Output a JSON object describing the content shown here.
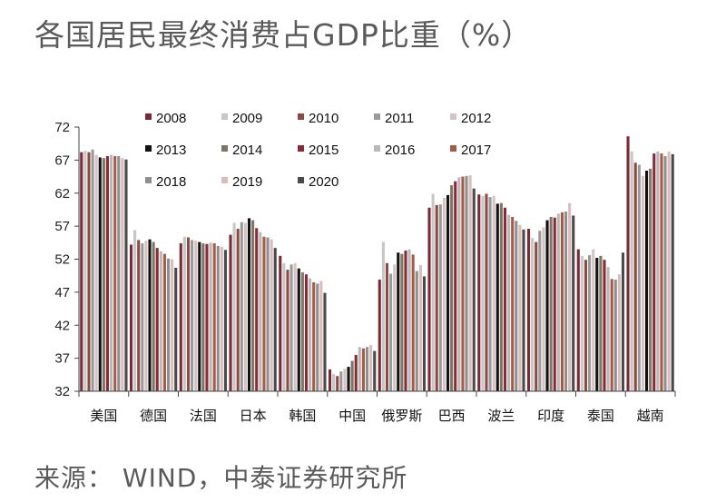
{
  "title": "各国居民最终消费占GDP比重（%）",
  "source": "来源： WIND，中泰证券研究所",
  "chart_data": {
    "type": "bar",
    "ylim": [
      32,
      72
    ],
    "yticks": [
      32,
      37,
      42,
      47,
      52,
      57,
      62,
      67,
      72
    ],
    "legend_position": "top-left",
    "categories": [
      "美国",
      "德国",
      "法国",
      "日本",
      "韩国",
      "中国",
      "俄罗斯",
      "巴西",
      "波兰",
      "印度",
      "泰国",
      "越南"
    ],
    "series": [
      {
        "name": "2008",
        "color": "#7a2a36",
        "values": [
          68.2,
          54.2,
          54.4,
          55.7,
          52.5,
          35.3,
          48.9,
          59.8,
          61.8,
          56.6,
          53.5,
          70.6
        ]
      },
      {
        "name": "2009",
        "color": "#c7c7c7",
        "values": [
          68.4,
          56.4,
          55.4,
          57.5,
          51.4,
          34.6,
          54.6,
          61.9,
          61.6,
          55.2,
          52.5,
          68.3
        ]
      },
      {
        "name": "2010",
        "color": "#8c4a43",
        "values": [
          68.2,
          54.9,
          55.3,
          56.6,
          50.4,
          34.3,
          51.4,
          60.2,
          61.9,
          54.6,
          51.9,
          66.6
        ]
      },
      {
        "name": "2011",
        "color": "#9a9a9a",
        "values": [
          68.6,
          54.4,
          54.9,
          57.6,
          51.2,
          35.0,
          49.8,
          60.3,
          61.4,
          56.3,
          52.6,
          66.3
        ]
      },
      {
        "name": "2012",
        "color": "#d6c4c4",
        "values": [
          67.8,
          54.8,
          54.8,
          57.5,
          51.4,
          35.4,
          51.2,
          61.3,
          61.6,
          56.8,
          53.5,
          64.6
        ]
      },
      {
        "name": "2013",
        "color": "#111111",
        "values": [
          67.4,
          55.0,
          54.6,
          58.2,
          50.6,
          35.7,
          53.0,
          61.7,
          60.4,
          57.9,
          52.2,
          65.4
        ]
      },
      {
        "name": "2014",
        "color": "#7d7566",
        "values": [
          67.3,
          54.6,
          54.4,
          57.9,
          50.0,
          36.6,
          52.8,
          63.2,
          60.5,
          58.4,
          52.5,
          65.7
        ]
      },
      {
        "name": "2015",
        "color": "#8a2a34",
        "values": [
          67.6,
          53.7,
          54.3,
          56.7,
          49.7,
          37.5,
          53.3,
          63.8,
          59.8,
          58.3,
          51.9,
          68.0
        ]
      },
      {
        "name": "2016",
        "color": "#b9b9b9",
        "values": [
          67.8,
          53.2,
          54.5,
          56.1,
          49.1,
          38.7,
          53.5,
          64.4,
          58.7,
          58.9,
          50.8,
          68.3
        ]
      },
      {
        "name": "2017",
        "color": "#a85a48",
        "values": [
          67.6,
          52.8,
          54.4,
          55.4,
          48.5,
          38.5,
          52.7,
          64.5,
          58.4,
          59.1,
          49.0,
          68.0
        ]
      },
      {
        "name": "2018",
        "color": "#8f8f8f",
        "values": [
          67.6,
          52.1,
          54.0,
          55.3,
          48.3,
          38.7,
          50.2,
          64.6,
          57.8,
          59.2,
          48.9,
          67.6
        ]
      },
      {
        "name": "2019",
        "color": "#d9bcbc",
        "values": [
          67.3,
          52.0,
          53.9,
          55.0,
          48.7,
          39.0,
          51.1,
          64.7,
          57.2,
          60.5,
          49.7,
          68.3
        ]
      },
      {
        "name": "2020",
        "color": "#4a4a4a",
        "values": [
          67.1,
          50.7,
          53.4,
          53.7,
          46.9,
          38.1,
          49.4,
          62.7,
          56.5,
          58.6,
          53.0,
          67.9
        ]
      }
    ]
  }
}
